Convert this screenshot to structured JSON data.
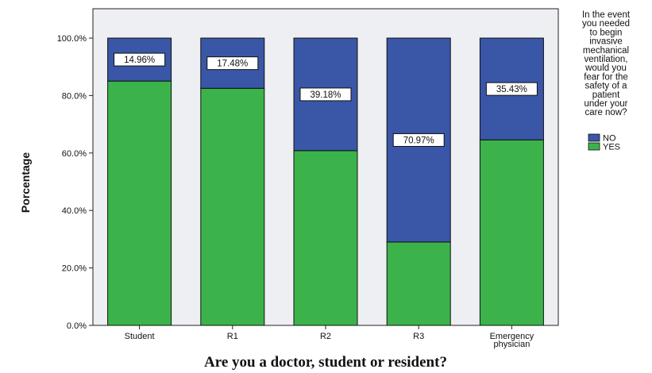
{
  "chart_data": {
    "type": "bar",
    "stacked": true,
    "categories": [
      "Student",
      "R1",
      "R2",
      "R3",
      "Emergency physician"
    ],
    "category_label_lines": [
      [
        "Student"
      ],
      [
        "R1"
      ],
      [
        "R2"
      ],
      [
        "R3"
      ],
      [
        "Emergency",
        "physician"
      ]
    ],
    "series": [
      {
        "name": "YES",
        "values": [
          85.04,
          82.52,
          60.82,
          29.03,
          64.57
        ],
        "color": "#3bb34a"
      },
      {
        "name": "NO",
        "values": [
          14.96,
          17.48,
          39.18,
          70.97,
          35.43
        ],
        "color": "#3a56a6"
      }
    ],
    "data_labels": [
      "14.96%",
      "17.48%",
      "39.18%",
      "70.97%",
      "35.43%"
    ],
    "xlabel": "Are you a doctor, student or resident?",
    "ylabel": "Porcentage",
    "ylim": [
      0,
      100
    ],
    "yticks": [
      "0.0%",
      "20.0%",
      "40.0%",
      "60.0%",
      "80.0%",
      "100.0%"
    ],
    "legend": {
      "title_lines": [
        "In the event",
        "you needed",
        "to begin",
        "invasive",
        "mechanical",
        "ventilation,",
        "would you",
        "fear for the",
        "safety of a",
        "patient",
        "under your",
        "care now?"
      ],
      "entries": [
        "NO",
        "YES"
      ],
      "placement": "right"
    },
    "plot_background": "#eeeff2"
  }
}
